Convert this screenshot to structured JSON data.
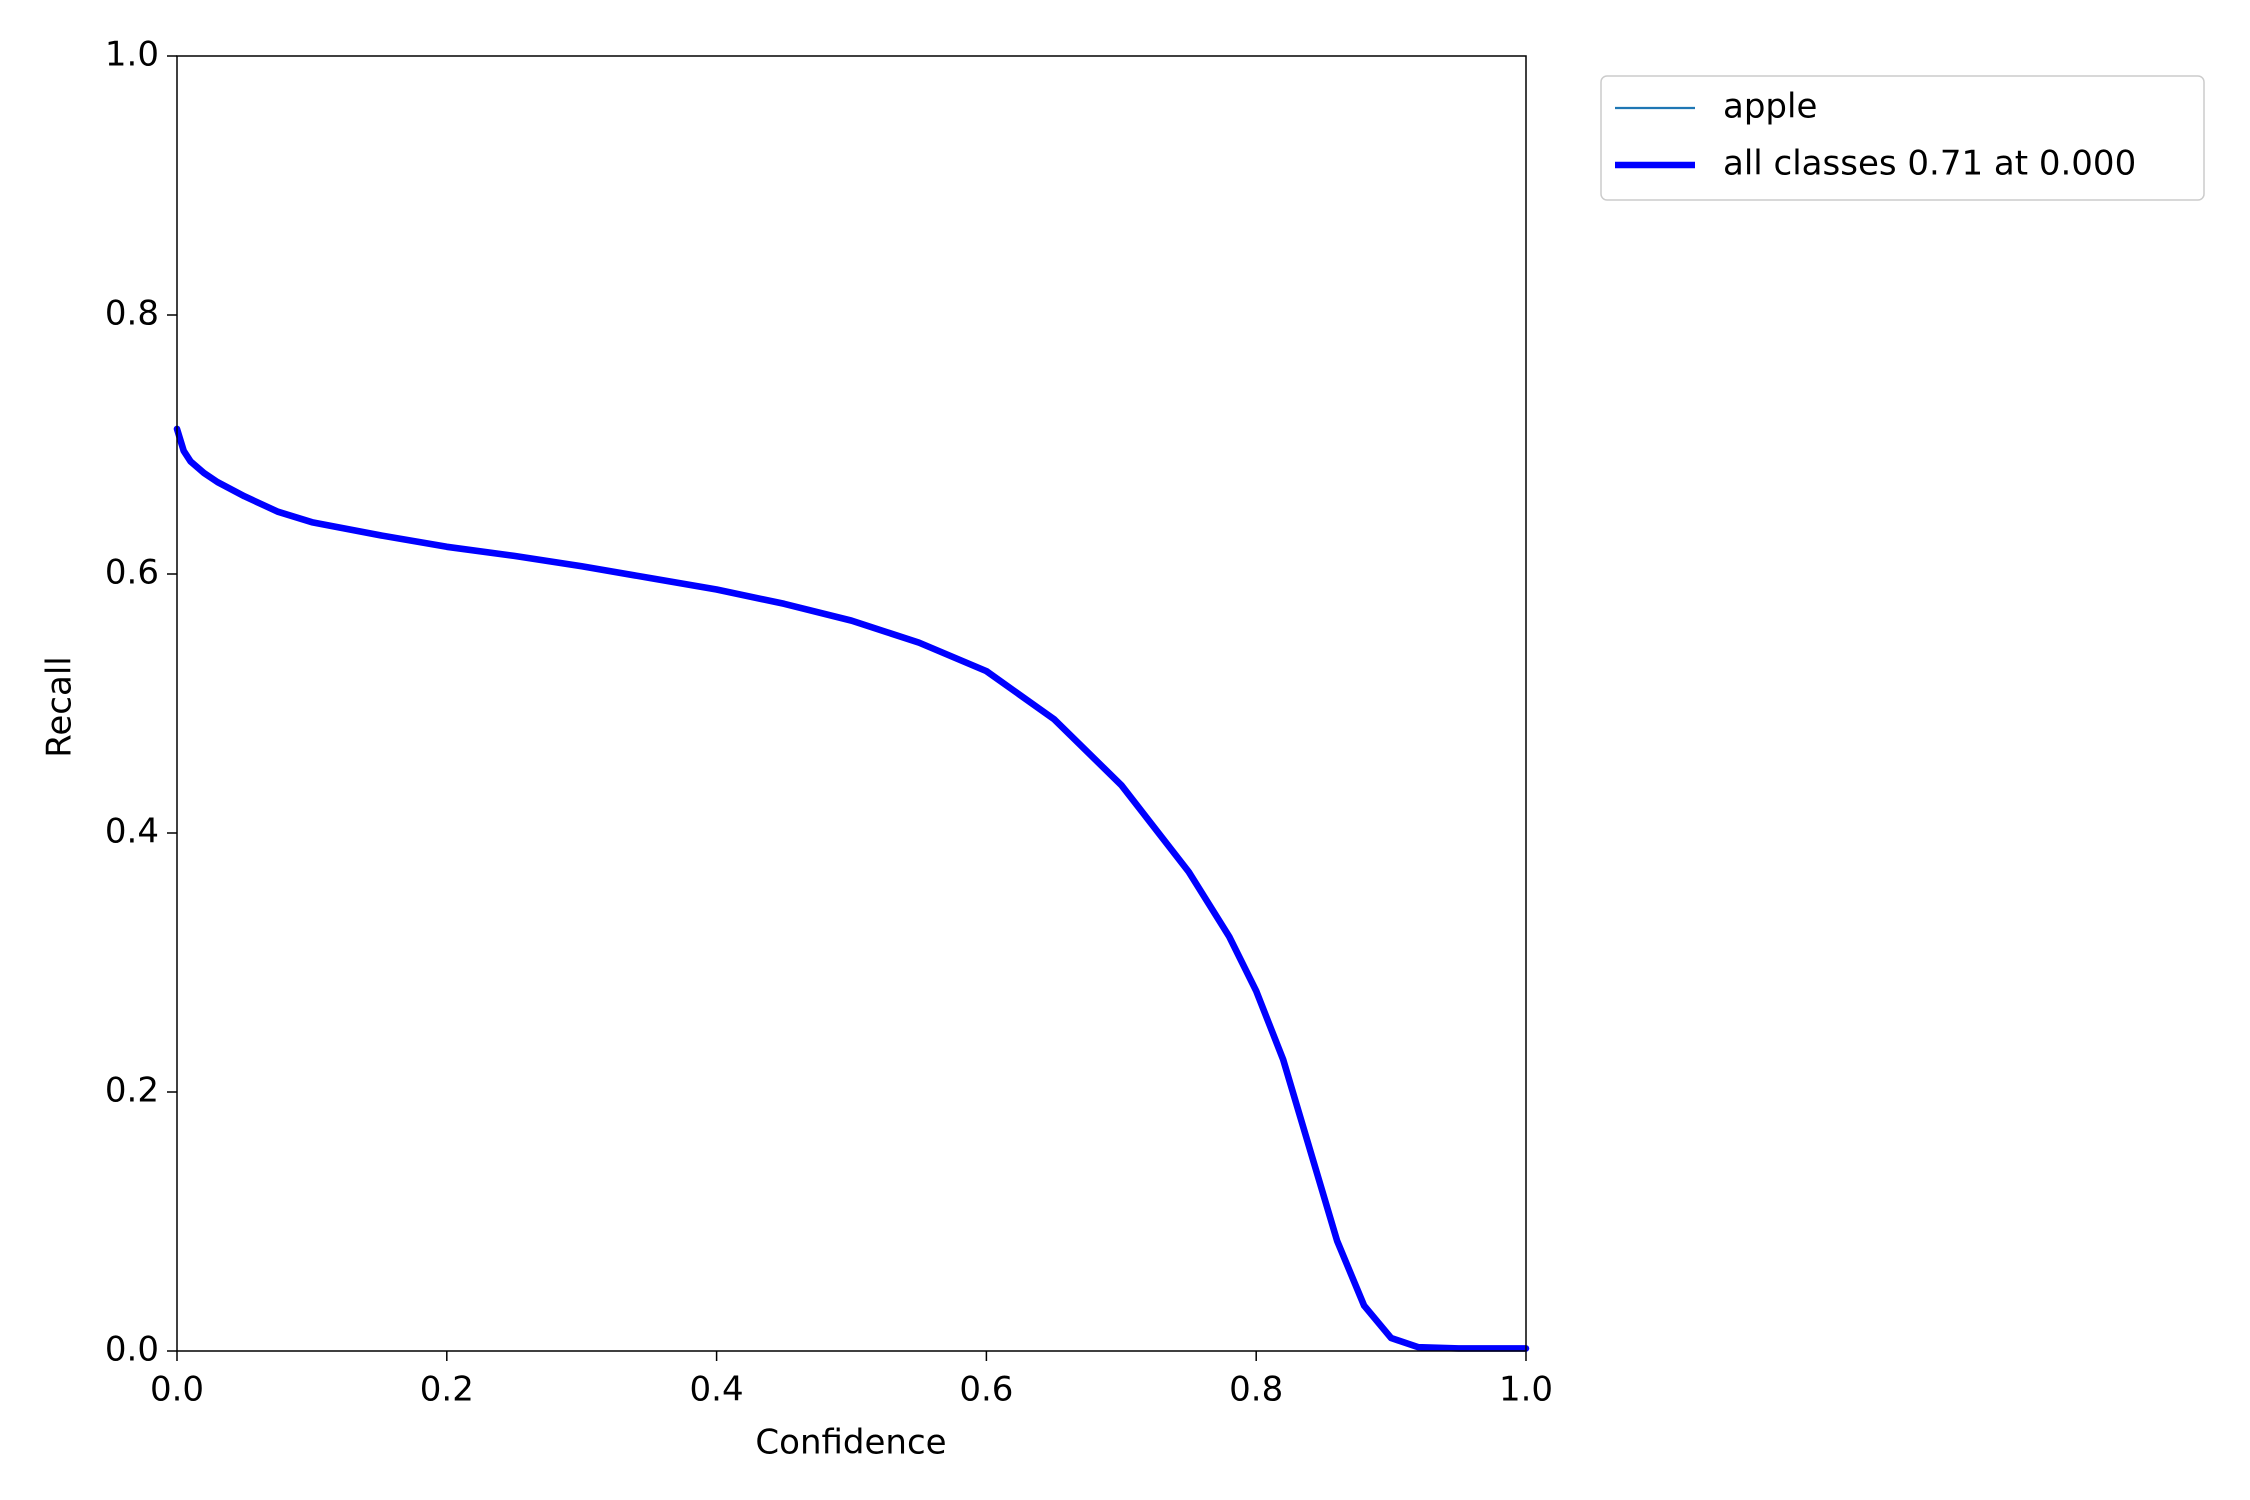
{
  "chart_data": {
    "type": "line",
    "xlabel": "Confidence",
    "ylabel": "Recall",
    "x": [
      0,
      0.005,
      0.01,
      0.02,
      0.03,
      0.05,
      0.075,
      0.1,
      0.15,
      0.2,
      0.25,
      0.3,
      0.35,
      0.4,
      0.45,
      0.5,
      0.55,
      0.6,
      0.65,
      0.7,
      0.75,
      0.78,
      0.8,
      0.82,
      0.84,
      0.86,
      0.88,
      0.9,
      0.92,
      0.95,
      1.0
    ],
    "series": [
      {
        "name": "apple",
        "color": "#1f77b4",
        "width": 1,
        "values": [
          0.712,
          0.695,
          0.687,
          0.678,
          0.671,
          0.66,
          0.648,
          0.64,
          0.63,
          0.621,
          0.614,
          0.606,
          0.597,
          0.588,
          0.577,
          0.564,
          0.547,
          0.525,
          0.488,
          0.437,
          0.37,
          0.32,
          0.278,
          0.225,
          0.155,
          0.085,
          0.035,
          0.01,
          0.003,
          0.002,
          0.002
        ]
      },
      {
        "name": "all classes 0.71 at 0.000",
        "color": "#0000ff",
        "width": 3,
        "values": [
          0.712,
          0.695,
          0.687,
          0.678,
          0.671,
          0.66,
          0.648,
          0.64,
          0.63,
          0.621,
          0.614,
          0.606,
          0.597,
          0.588,
          0.577,
          0.564,
          0.547,
          0.525,
          0.488,
          0.437,
          0.37,
          0.32,
          0.278,
          0.225,
          0.155,
          0.085,
          0.035,
          0.01,
          0.003,
          0.002,
          0.002
        ]
      }
    ],
    "xlim": [
      0,
      1
    ],
    "ylim": [
      0,
      1
    ],
    "xticks": [
      {
        "value": 0,
        "label": "0.0"
      },
      {
        "value": 0.2,
        "label": "0.2"
      },
      {
        "value": 0.4,
        "label": "0.4"
      },
      {
        "value": 0.6,
        "label": "0.6"
      },
      {
        "value": 0.8,
        "label": "0.8"
      },
      {
        "value": 1,
        "label": "1.0"
      }
    ],
    "yticks": [
      {
        "value": 0,
        "label": "0.0"
      },
      {
        "value": 0.2,
        "label": "0.2"
      },
      {
        "value": 0.4,
        "label": "0.4"
      },
      {
        "value": 0.6,
        "label": "0.6"
      },
      {
        "value": 0.8,
        "label": "0.8"
      },
      {
        "value": 1,
        "label": "1.0"
      }
    ],
    "grid": false,
    "legend": "outside upper right"
  }
}
